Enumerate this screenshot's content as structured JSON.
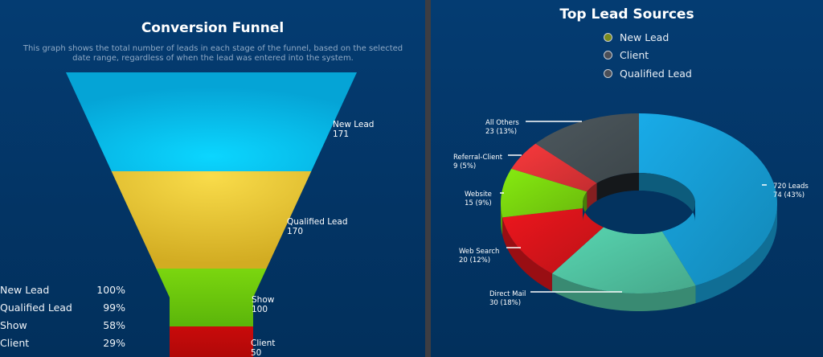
{
  "funnel": {
    "title": "Conversion Funnel",
    "subtitle": "This graph shows the total number of leads in each stage of the funnel, based on the selected date range, regardless of when the lead was entered into the system.",
    "stats": [
      {
        "label": "New Lead",
        "percent": "100%"
      },
      {
        "label": "Qualified Lead",
        "percent": "99%"
      },
      {
        "label": "Show",
        "percent": "58%"
      },
      {
        "label": "Client",
        "percent": "29%"
      }
    ]
  },
  "sources": {
    "title": "Top Lead Sources",
    "legend": [
      {
        "label": "New Lead",
        "color": "#7a8a1e"
      },
      {
        "label": "Client",
        "color": "#4a4e57"
      },
      {
        "label": "Qualified Lead",
        "color": "#4a4e57"
      }
    ]
  },
  "chart_data": [
    {
      "type": "funnel",
      "title": "Conversion Funnel",
      "categories": [
        "New Lead",
        "Qualified Lead",
        "Show",
        "Client"
      ],
      "values": [
        171,
        170,
        100,
        50
      ],
      "labels": [
        "171",
        "170",
        "100",
        "50"
      ],
      "colors": [
        "#0ac8f0",
        "#e8c93a",
        "#72cc0e",
        "#c00a0a"
      ]
    },
    {
      "type": "pie",
      "subtype": "donut-3d",
      "title": "Top Lead Sources",
      "categories": [
        "720 Leads",
        "Direct Mail",
        "Web Search",
        "Website",
        "Referral-Client",
        "All Others"
      ],
      "values": [
        74,
        30,
        20,
        15,
        9,
        23
      ],
      "percents": [
        43,
        18,
        12,
        9,
        5,
        13
      ],
      "value_labels": [
        "74 (43%)",
        "30 (18%)",
        "20 (12%)",
        "15 (9%)",
        "9 (5%)",
        "23 (13%)"
      ],
      "colors": [
        "#1699cf",
        "#4fbf9e",
        "#d4141a",
        "#78d20e",
        "#de3336",
        "#454f54"
      ]
    }
  ]
}
